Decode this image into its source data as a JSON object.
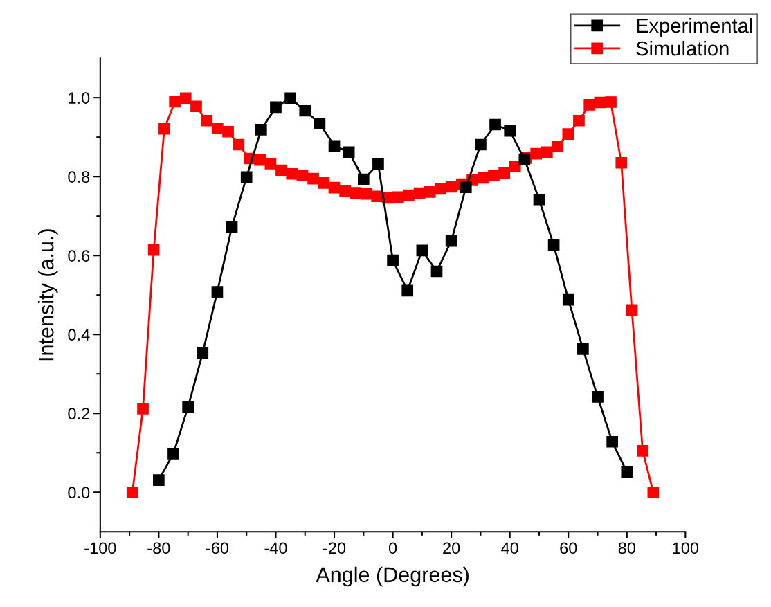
{
  "chart_data": {
    "type": "line",
    "xlabel": "Angle (Degrees)",
    "ylabel": "Intensity (a.u.)",
    "xlim": [
      -100,
      100
    ],
    "xticks": [
      -100,
      -80,
      -60,
      -40,
      -20,
      0,
      20,
      40,
      60,
      80,
      100
    ],
    "ylim": [
      -0.1,
      1.1
    ],
    "yticks": [
      {
        "value": 0,
        "label": "0.0"
      },
      0.2,
      0.4,
      0.6,
      0.8,
      {
        "value": 1,
        "label": "1.0"
      }
    ],
    "marker": "square",
    "line_style": "solid",
    "grid": false,
    "legend": "top right",
    "series": [
      {
        "name": "Experimental",
        "color": "#000000",
        "x": [
          -80,
          -75,
          -70,
          -65,
          -60,
          -55,
          -50,
          -45,
          -40,
          -35,
          -30,
          -25,
          -20,
          -15,
          -10,
          -5,
          0,
          5,
          10,
          15,
          20,
          25,
          30,
          35,
          40,
          45,
          50,
          55,
          60,
          65,
          70,
          75,
          80
        ],
        "values": [
          0.031,
          0.098,
          0.216,
          0.353,
          0.508,
          0.673,
          0.799,
          0.919,
          0.976,
          0.999,
          0.967,
          0.935,
          0.878,
          0.862,
          0.793,
          0.832,
          0.588,
          0.511,
          0.613,
          0.56,
          0.637,
          0.773,
          0.881,
          0.932,
          0.916,
          0.844,
          0.742,
          0.626,
          0.488,
          0.363,
          0.242,
          0.128,
          0.051
        ]
      },
      {
        "name": "Simulation",
        "color": "#ff0000",
        "x": [
          -89.0,
          -85.4,
          -81.7,
          -78.1,
          -74.5,
          -70.8,
          -67.2,
          -63.6,
          -59.9,
          -56.3,
          -52.7,
          -49.0,
          -45.4,
          -41.8,
          -38.1,
          -34.5,
          -30.9,
          -27.2,
          -23.6,
          -20.0,
          -16.3,
          -12.7,
          -9.1,
          -5.4,
          -1.8,
          1.8,
          5.4,
          9.1,
          12.7,
          16.3,
          20.0,
          23.6,
          27.2,
          30.9,
          34.5,
          38.1,
          41.8,
          45.4,
          49.0,
          52.7,
          56.3,
          59.9,
          63.6,
          67.2,
          70.8,
          74.5,
          78.1,
          81.7,
          85.4,
          89.0
        ],
        "values": [
          0.0,
          0.212,
          0.614,
          0.921,
          0.99,
          0.999,
          0.978,
          0.942,
          0.922,
          0.914,
          0.881,
          0.846,
          0.842,
          0.833,
          0.816,
          0.807,
          0.803,
          0.795,
          0.784,
          0.772,
          0.763,
          0.759,
          0.756,
          0.75,
          0.746,
          0.748,
          0.753,
          0.758,
          0.761,
          0.769,
          0.774,
          0.781,
          0.791,
          0.797,
          0.803,
          0.809,
          0.826,
          0.847,
          0.858,
          0.862,
          0.877,
          0.908,
          0.942,
          0.982,
          0.988,
          0.989,
          0.835,
          0.462,
          0.105,
          0.0
        ]
      }
    ]
  }
}
